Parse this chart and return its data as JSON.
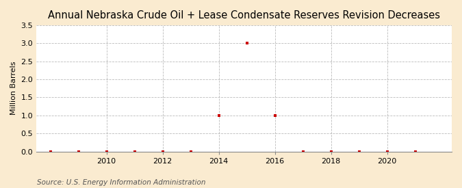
{
  "title": "Annual Nebraska Crude Oil + Lease Condensate Reserves Revision Decreases",
  "ylabel": "Million Barrels",
  "source": "Source: U.S. Energy Information Administration",
  "background_color": "#faebd0",
  "plot_bg_color": "#ffffff",
  "marker_color": "#cc0000",
  "grid_color": "#aaaaaa",
  "years": [
    2008,
    2009,
    2010,
    2011,
    2012,
    2013,
    2014,
    2015,
    2016,
    2017,
    2018,
    2019,
    2020,
    2021
  ],
  "values": [
    0.0,
    0.0,
    0.0,
    0.0,
    0.0,
    0.0,
    1.0,
    3.0,
    1.0,
    0.0,
    0.0,
    0.0,
    0.0,
    0.0
  ],
  "ylim": [
    0.0,
    3.5
  ],
  "yticks": [
    0.0,
    0.5,
    1.0,
    1.5,
    2.0,
    2.5,
    3.0,
    3.5
  ],
  "xlim": [
    2007.5,
    2022.3
  ],
  "xticks": [
    2010,
    2012,
    2014,
    2016,
    2018,
    2020
  ],
  "title_fontsize": 10.5,
  "label_fontsize": 8,
  "tick_fontsize": 8,
  "source_fontsize": 7.5
}
